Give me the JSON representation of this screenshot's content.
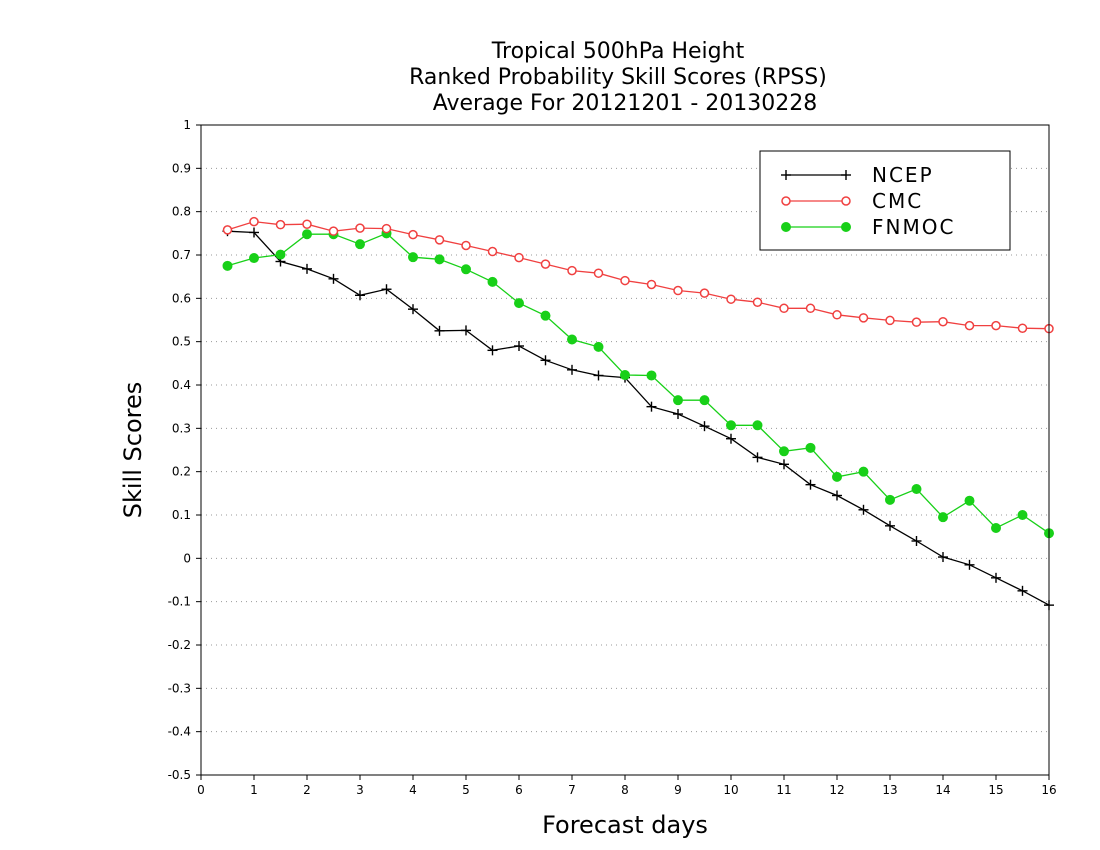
{
  "chart_data": {
    "type": "line",
    "title_lines": [
      "Tropical 500hPa Height",
      "Ranked Probability Skill Scores (RPSS)",
      "Average For 20121201 - 20130228"
    ],
    "xlabel": "Forecast days",
    "ylabel": "Skill Scores",
    "xlim": [
      0,
      16
    ],
    "ylim": [
      -0.5,
      1
    ],
    "xticks": [
      "0",
      "1",
      "2",
      "3",
      "4",
      "5",
      "6",
      "7",
      "8",
      "9",
      "10",
      "11",
      "12",
      "13",
      "14",
      "15",
      "16"
    ],
    "yticks": [
      "1",
      "0.9",
      "0.8",
      "0.7",
      "0.6",
      "0.5",
      "0.4",
      "0.3",
      "0.2",
      "0.1",
      "0",
      "-0.1",
      "-0.2",
      "-0.3",
      "-0.4",
      "-0.5"
    ],
    "grid": "horizontal dotted",
    "legend_position": "top-right",
    "x": [
      0.5,
      1,
      1.5,
      2,
      2.5,
      3,
      3.5,
      4,
      4.5,
      5,
      5.5,
      6,
      6.5,
      7,
      7.5,
      8,
      8.5,
      9,
      9.5,
      10,
      10.5,
      11,
      11.5,
      12,
      12.5,
      13,
      13.5,
      14,
      14.5,
      15,
      15.5,
      16
    ],
    "series": [
      {
        "name": "NCEP",
        "color": "#000000",
        "marker": "plus",
        "values": [
          0.755,
          0.752,
          0.685,
          0.668,
          0.645,
          0.607,
          0.621,
          0.575,
          0.525,
          0.526,
          0.48,
          0.49,
          0.457,
          0.435,
          0.422,
          0.417,
          0.35,
          0.333,
          0.305,
          0.276,
          0.233,
          0.217,
          0.17,
          0.145,
          0.112,
          0.075,
          0.04,
          0.003,
          -0.015,
          -0.045,
          -0.075,
          -0.108
        ]
      },
      {
        "name": "CMC",
        "color": "#f04040",
        "marker": "open-circle",
        "values": [
          0.758,
          0.777,
          0.77,
          0.771,
          0.755,
          0.762,
          0.761,
          0.747,
          0.735,
          0.722,
          0.708,
          0.694,
          0.679,
          0.664,
          0.658,
          0.641,
          0.632,
          0.618,
          0.612,
          0.598,
          0.591,
          0.577,
          0.577,
          0.562,
          0.555,
          0.549,
          0.545,
          0.546,
          0.537,
          0.537,
          0.531,
          0.53
        ]
      },
      {
        "name": "FNMOC",
        "color": "#18d018",
        "marker": "filled-circle",
        "values": [
          0.675,
          0.693,
          0.701,
          0.748,
          0.748,
          0.725,
          0.75,
          0.695,
          0.69,
          0.667,
          0.638,
          0.589,
          0.56,
          0.505,
          0.488,
          0.423,
          0.422,
          0.365,
          0.365,
          0.307,
          0.307,
          0.247,
          0.255,
          0.188,
          0.2,
          0.135,
          0.16,
          0.095,
          0.133,
          0.07,
          0.1,
          0.058
        ]
      }
    ]
  }
}
